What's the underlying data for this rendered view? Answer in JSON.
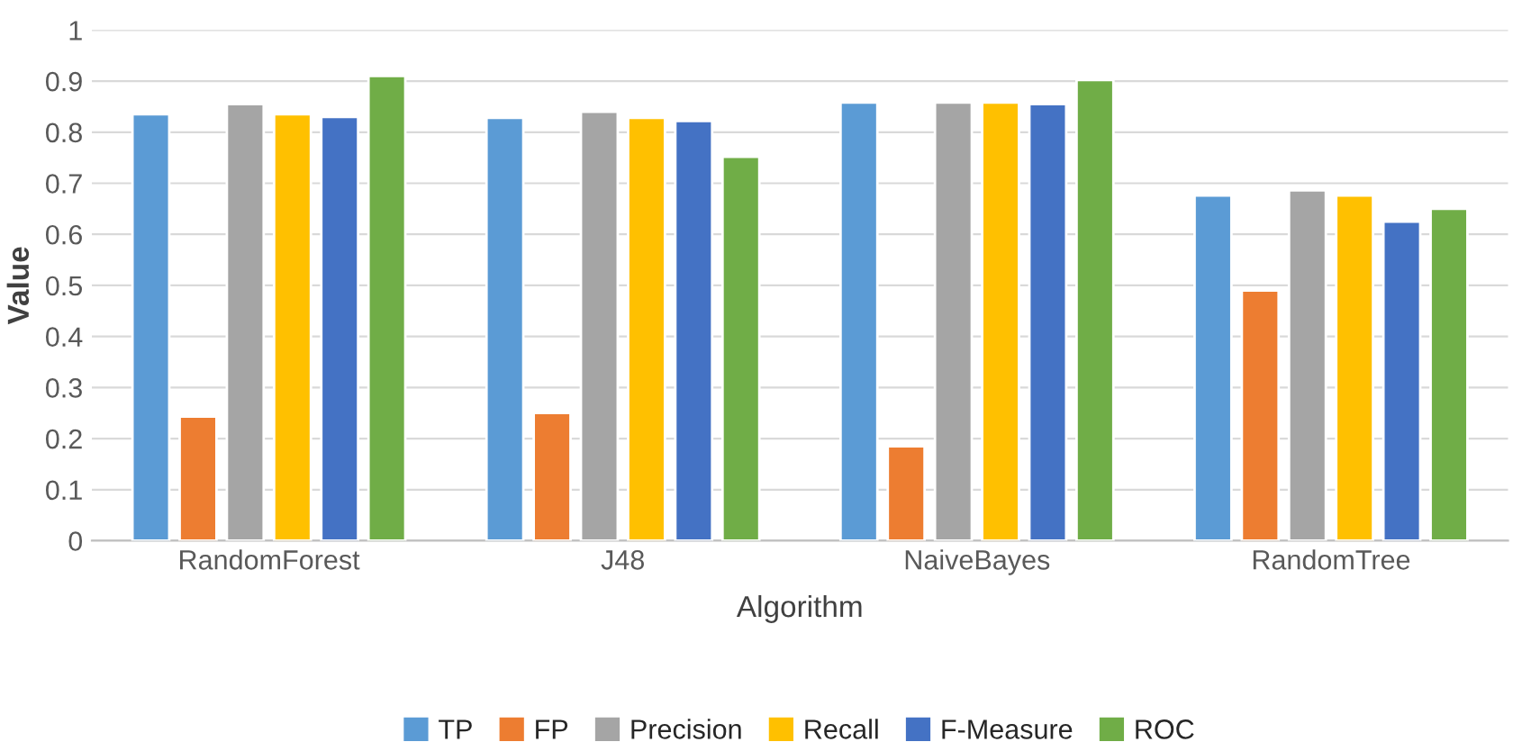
{
  "chart_data": {
    "type": "bar",
    "xlabel": "Algorithm",
    "ylabel": "Value",
    "categories": [
      "RandomForest",
      "J48",
      "NaiveBayes",
      "RandomTree"
    ],
    "series": [
      {
        "name": "TP",
        "color": "#5b9bd5",
        "values": [
          0.835,
          0.828,
          0.858,
          0.676
        ]
      },
      {
        "name": "FP",
        "color": "#ed7d31",
        "values": [
          0.243,
          0.25,
          0.185,
          0.49
        ]
      },
      {
        "name": "Precision",
        "color": "#a5a5a5",
        "values": [
          0.855,
          0.84,
          0.858,
          0.686
        ]
      },
      {
        "name": "Recall",
        "color": "#ffc000",
        "values": [
          0.835,
          0.828,
          0.858,
          0.676
        ]
      },
      {
        "name": "F-Measure",
        "color": "#4472c4",
        "values": [
          0.83,
          0.822,
          0.855,
          0.625
        ]
      },
      {
        "name": "ROC",
        "color": "#70ad47",
        "values": [
          0.91,
          0.752,
          0.902,
          0.65
        ]
      }
    ],
    "ylim": [
      0,
      1
    ],
    "yticks": [
      0,
      {
        "value": 0.1,
        "label": "0.1"
      },
      {
        "value": 0.2,
        "label": "0.2"
      },
      {
        "value": 0.3,
        "label": "0.3"
      },
      {
        "value": 0.4,
        "label": "0.4"
      },
      {
        "value": 0.5,
        "label": "0.5"
      },
      {
        "value": 0.6,
        "label": "0.6"
      },
      {
        "value": 0.7,
        "label": "0.7"
      },
      {
        "value": 0.8,
        "label": "0.8"
      },
      {
        "value": 0.9,
        "label": "0.9"
      },
      1
    ],
    "grid": "y",
    "legend": "bottom"
  }
}
